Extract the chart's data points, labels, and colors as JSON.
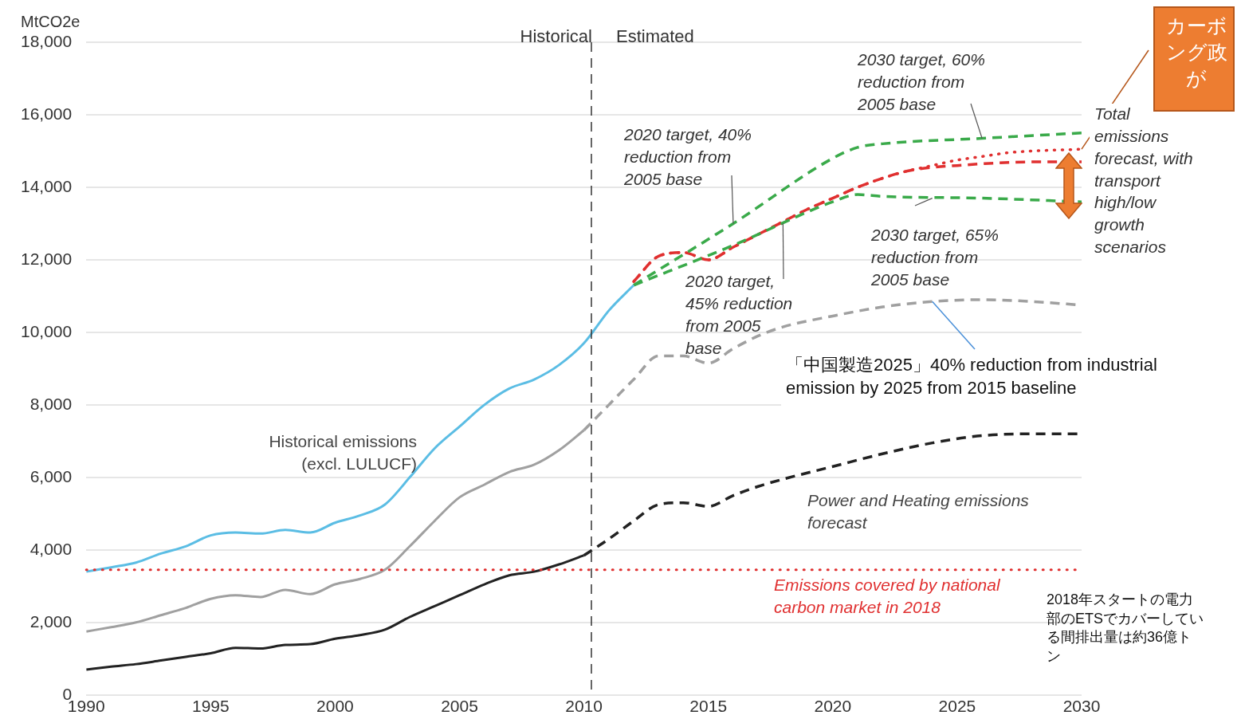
{
  "chart_data": {
    "type": "line",
    "ylabel": "MtCO2e",
    "xlim": [
      1990,
      2030
    ],
    "xticks": [
      1990,
      1995,
      2000,
      2005,
      2010,
      2015,
      2020,
      2025,
      2030
    ],
    "ylim": [
      0,
      18000
    ],
    "yticks": [
      0,
      {
        "value": 2000,
        "label": "2,000"
      },
      {
        "value": 4000,
        "label": "4,000"
      },
      {
        "value": 6000,
        "label": "6,000"
      },
      {
        "value": 8000,
        "label": "8,000"
      },
      {
        "value": 10000,
        "label": "10,000"
      },
      {
        "value": 12000,
        "label": "12,000"
      },
      {
        "value": 14000,
        "label": "14,000"
      },
      {
        "value": 16000,
        "label": "16,000"
      },
      {
        "value": 18000,
        "label": "18,000"
      }
    ],
    "grid": "y",
    "legend": false,
    "marker": "none",
    "series": [
      {
        "name": "Historical emissions (excl. LULUCF)",
        "color": "#5bbde4",
        "line_style": "solid",
        "x": [
          1990,
          1991,
          1992,
          1993,
          1994,
          1995,
          1996,
          1997,
          1998,
          1999,
          2000,
          2001,
          2002,
          2003,
          2004,
          2005,
          2006,
          2007,
          2008,
          2009,
          2010,
          2011,
          2012
        ],
        "values": [
          3400,
          3520,
          3650,
          3900,
          4100,
          4400,
          4480,
          4450,
          4550,
          4480,
          4750,
          4950,
          5250,
          6000,
          6800,
          7400,
          8000,
          8450,
          8700,
          9100,
          9700,
          10600,
          11300
        ]
      },
      {
        "color": "#a0a0a0",
        "line_style": "solid",
        "x": [
          1990,
          1991,
          1992,
          1993,
          1994,
          1995,
          1996,
          1997,
          1998,
          1999,
          2000,
          2001,
          2002,
          2003,
          2004,
          2005,
          2006,
          2007,
          2008,
          2009,
          2010
        ],
        "values": [
          1750,
          1870,
          2000,
          2200,
          2400,
          2650,
          2750,
          2700,
          2900,
          2780,
          3050,
          3200,
          3450,
          4100,
          4800,
          5450,
          5800,
          6150,
          6350,
          6750,
          7300
        ]
      },
      {
        "color": "#a0a0a0",
        "line_style": "dashed",
        "x": [
          2010,
          2011,
          2012,
          2013,
          2014,
          2015,
          2016,
          2017,
          2018,
          2020,
          2022,
          2024,
          2026,
          2028,
          2030
        ],
        "values": [
          7300,
          8000,
          8700,
          9350,
          9350,
          9150,
          9550,
          9900,
          10150,
          10450,
          10700,
          10850,
          10900,
          10850,
          10750
        ]
      },
      {
        "color": "#222222",
        "line_style": "solid",
        "x": [
          1990,
          1991,
          1992,
          1993,
          1994,
          1995,
          1996,
          1997,
          1998,
          1999,
          2000,
          2001,
          2002,
          2003,
          2004,
          2005,
          2006,
          2007,
          2008,
          2009,
          2010
        ],
        "values": [
          700,
          780,
          850,
          950,
          1050,
          1150,
          1300,
          1280,
          1380,
          1400,
          1550,
          1650,
          1800,
          2150,
          2450,
          2750,
          3050,
          3300,
          3400,
          3600,
          3850
        ]
      },
      {
        "name": "Power and Heating emissions forecast",
        "color": "#222222",
        "line_style": "dashed",
        "x": [
          2010,
          2011,
          2012,
          2013,
          2014,
          2015,
          2016,
          2017,
          2018,
          2020,
          2022,
          2024,
          2026,
          2028,
          2030
        ],
        "values": [
          3850,
          4300,
          4800,
          5250,
          5300,
          5200,
          5500,
          5750,
          5950,
          6300,
          6650,
          6950,
          7150,
          7200,
          7200
        ]
      },
      {
        "color": "#3aaa4a",
        "line_style": "dashed",
        "x": [
          2012,
          2016,
          2020,
          2021,
          2022,
          2026,
          2030
        ],
        "values": [
          11300,
          13000,
          14800,
          15100,
          15200,
          15350,
          15500
        ]
      },
      {
        "color": "#3aaa4a",
        "line_style": "dashed",
        "x": [
          2012,
          2016,
          2020,
          2021,
          2022,
          2026,
          2030
        ],
        "values": [
          11300,
          12400,
          13600,
          13800,
          13750,
          13700,
          13600
        ]
      },
      {
        "color": "#e03030",
        "line_style": "dotted",
        "x": [
          2012,
          2013,
          2014,
          2015,
          2016,
          2017,
          2018,
          2019,
          2020,
          2021,
          2022,
          2023,
          2024,
          2025,
          2026,
          2027,
          2028,
          2030
        ],
        "values": [
          11400,
          12100,
          12200,
          12000,
          12350,
          12700,
          13050,
          13400,
          13700,
          14000,
          14250,
          14450,
          14600,
          14750,
          14850,
          14950,
          15000,
          15050
        ]
      },
      {
        "color": "#e03030",
        "line_style": "dashed",
        "x": [
          2012,
          2013,
          2014,
          2015,
          2016,
          2017,
          2018,
          2019,
          2020,
          2021,
          2022,
          2023,
          2024,
          2025,
          2026,
          2028,
          2030
        ],
        "values": [
          11400,
          12100,
          12200,
          12000,
          12350,
          12700,
          13050,
          13400,
          13700,
          14000,
          14250,
          14450,
          14550,
          14600,
          14650,
          14700,
          14700
        ]
      }
    ],
    "ref_lines": [
      {
        "axis": "y",
        "value": 3450,
        "label": "Emissions covered by national carbon market in 2018",
        "color": "#e03030",
        "line_style": "dotted"
      },
      {
        "axis": "x",
        "value": 2010.3,
        "color": "#333333",
        "line_style": "dashed"
      }
    ],
    "annotations": [
      "Historical",
      "Estimated",
      {
        "text": "2020 target, 40%\nreduction from\n2005 base",
        "x": 2016,
        "y": 13000
      },
      {
        "text": "2030 target, 60%\nreduction from\n2005 base",
        "x": 2026,
        "y": 15350
      },
      {
        "text": "2020 target,\n45% reduction\nfrom 2005\nbase",
        "x": 2018,
        "y": 13000
      },
      {
        "text": "2030 target, 65%\nreduction from\n2005 base",
        "x": 2024,
        "y": 13700
      },
      "Total\nemissions\nforecast, with\ntransport\nhigh/low\ngrowth\nscenarios",
      {
        "text": "「中国製造2025」40% reduction from industrial\nemission by 2025 from 2015 baseline",
        "x": 2024,
        "y": 10850
      },
      "2018年スタートの電力部のETSでカバーしている間排出量は約36億トン",
      {
        "text": "カーボング政が",
        "x": 2030,
        "y": 15050
      }
    ]
  }
}
